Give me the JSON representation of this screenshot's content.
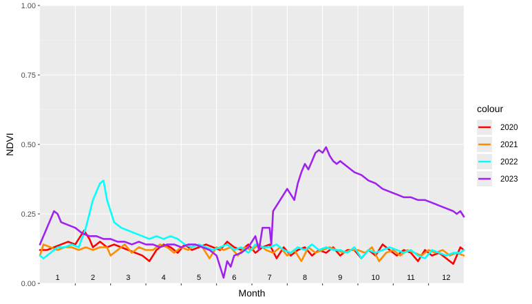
{
  "chart_data": {
    "type": "line",
    "title": "",
    "xlabel": "Month",
    "ylabel": "NDVI",
    "ylim": [
      0,
      1
    ],
    "yticks": [
      0,
      0.25,
      0.5,
      0.75,
      1
    ],
    "ytick_labels": [
      "0.00",
      "0.25",
      "0.50",
      "0.75",
      "1.00"
    ],
    "xlim": [
      0.5,
      12.5
    ],
    "categories": [
      "1",
      "2",
      "3",
      "4",
      "5",
      "6",
      "7",
      "8",
      "9",
      "10",
      "11",
      "12"
    ],
    "grid": true,
    "legend": {
      "title": "colour",
      "position": "right"
    },
    "series": [
      {
        "name": "2020",
        "color": "#ff0000",
        "x": [
          0.5,
          0.7,
          0.9,
          1.1,
          1.3,
          1.5,
          1.75,
          1.9,
          2.0,
          2.2,
          2.4,
          2.6,
          2.8,
          3.0,
          3.2,
          3.4,
          3.6,
          3.8,
          4.0,
          4.2,
          4.4,
          4.6,
          4.8,
          5.0,
          5.2,
          5.4,
          5.6,
          5.8,
          6.0,
          6.2,
          6.4,
          6.6,
          6.8,
          7.0,
          7.2,
          7.4,
          7.6,
          7.8,
          8.0,
          8.2,
          8.4,
          8.6,
          8.8,
          9.0,
          9.2,
          9.4,
          9.6,
          9.8,
          10.0,
          10.2,
          10.4,
          10.6,
          10.8,
          11.0,
          11.2,
          11.4,
          11.6,
          11.8,
          12.0,
          12.2,
          12.4,
          12.5
        ],
        "y": [
          0.12,
          0.12,
          0.13,
          0.14,
          0.15,
          0.14,
          0.19,
          0.16,
          0.13,
          0.15,
          0.13,
          0.14,
          0.13,
          0.12,
          0.11,
          0.1,
          0.08,
          0.12,
          0.14,
          0.13,
          0.11,
          0.14,
          0.12,
          0.13,
          0.14,
          0.13,
          0.12,
          0.15,
          0.13,
          0.12,
          0.14,
          0.11,
          0.13,
          0.14,
          0.09,
          0.13,
          0.1,
          0.12,
          0.13,
          0.1,
          0.12,
          0.11,
          0.13,
          0.1,
          0.12,
          0.12,
          0.09,
          0.12,
          0.1,
          0.14,
          0.12,
          0.1,
          0.12,
          0.11,
          0.08,
          0.12,
          0.1,
          0.11,
          0.09,
          0.07,
          0.13,
          0.12
        ]
      },
      {
        "name": "2021",
        "color": "#ff8c00",
        "x": [
          0.5,
          0.6,
          0.8,
          1.0,
          1.2,
          1.4,
          1.6,
          1.8,
          2.0,
          2.2,
          2.4,
          2.5,
          2.7,
          2.9,
          3.1,
          3.3,
          3.5,
          3.7,
          3.9,
          4.1,
          4.3,
          4.5,
          4.7,
          4.9,
          5.1,
          5.3,
          5.5,
          5.7,
          5.9,
          6.1,
          6.3,
          6.5,
          6.7,
          6.9,
          7.1,
          7.3,
          7.5,
          7.7,
          7.9,
          8.1,
          8.3,
          8.5,
          8.7,
          8.9,
          9.1,
          9.3,
          9.5,
          9.7,
          9.9,
          10.1,
          10.3,
          10.5,
          10.7,
          10.9,
          11.1,
          11.3,
          11.5,
          11.7,
          11.9,
          12.1,
          12.3,
          12.5
        ],
        "y": [
          0.1,
          0.14,
          0.13,
          0.12,
          0.13,
          0.13,
          0.12,
          0.13,
          0.12,
          0.13,
          0.13,
          0.1,
          0.12,
          0.14,
          0.11,
          0.13,
          0.12,
          0.12,
          0.14,
          0.13,
          0.11,
          0.13,
          0.12,
          0.14,
          0.13,
          0.09,
          0.13,
          0.12,
          0.13,
          0.1,
          0.13,
          0.12,
          0.14,
          0.12,
          0.11,
          0.13,
          0.1,
          0.12,
          0.08,
          0.13,
          0.11,
          0.12,
          0.13,
          0.12,
          0.11,
          0.12,
          0.12,
          0.11,
          0.13,
          0.08,
          0.11,
          0.12,
          0.1,
          0.12,
          0.11,
          0.1,
          0.12,
          0.11,
          0.12,
          0.1,
          0.11,
          0.1
        ]
      },
      {
        "name": "2022",
        "color": "#00ffff",
        "x": [
          0.5,
          0.6,
          0.7,
          0.8,
          0.9,
          1.0,
          1.2,
          1.4,
          1.6,
          1.8,
          2.0,
          2.2,
          2.3,
          2.4,
          2.5,
          2.6,
          2.8,
          3.0,
          3.2,
          3.4,
          3.6,
          3.8,
          4.0,
          4.2,
          4.4,
          4.6,
          4.8,
          5.0,
          5.2,
          5.4,
          5.6,
          5.8,
          6.0,
          6.2,
          6.4,
          6.6,
          6.8,
          7.0,
          7.2,
          7.4,
          7.6,
          7.8,
          8.0,
          8.2,
          8.4,
          8.6,
          8.8,
          9.0,
          9.2,
          9.4,
          9.6,
          9.8,
          10.0,
          10.2,
          10.4,
          10.6,
          10.8,
          11.0,
          11.2,
          11.4,
          11.6,
          11.8,
          12.0,
          12.2,
          12.4,
          12.5
        ],
        "y": [
          0.1,
          0.09,
          0.1,
          0.11,
          0.12,
          0.13,
          0.13,
          0.14,
          0.13,
          0.2,
          0.3,
          0.36,
          0.37,
          0.3,
          0.26,
          0.22,
          0.2,
          0.19,
          0.18,
          0.17,
          0.16,
          0.17,
          0.16,
          0.17,
          0.16,
          0.14,
          0.13,
          0.14,
          0.13,
          0.12,
          0.13,
          0.14,
          0.12,
          0.13,
          0.11,
          0.14,
          0.13,
          0.13,
          0.14,
          0.12,
          0.11,
          0.13,
          0.12,
          0.14,
          0.12,
          0.13,
          0.12,
          0.12,
          0.11,
          0.13,
          0.09,
          0.12,
          0.11,
          0.12,
          0.13,
          0.12,
          0.11,
          0.12,
          0.1,
          0.09,
          0.12,
          0.11,
          0.1,
          0.11,
          0.11,
          0.12
        ]
      },
      {
        "name": "2023",
        "color": "#a020f0",
        "x": [
          0.5,
          0.9,
          1.0,
          1.1,
          1.3,
          1.5,
          1.7,
          1.9,
          2.1,
          2.3,
          2.5,
          2.7,
          2.9,
          3.1,
          3.3,
          3.5,
          3.7,
          3.9,
          4.1,
          4.3,
          4.5,
          4.7,
          4.9,
          5.1,
          5.3,
          5.5,
          5.7,
          5.8,
          5.9,
          6.0,
          6.2,
          6.4,
          6.6,
          6.7,
          6.8,
          6.9,
          7.0,
          7.05,
          7.1,
          7.3,
          7.5,
          7.6,
          7.7,
          7.8,
          7.9,
          8.0,
          8.1,
          8.2,
          8.3,
          8.4,
          8.5,
          8.6,
          8.7,
          8.8,
          8.9,
          9.0,
          9.1,
          9.2,
          9.4,
          9.6,
          9.8,
          10.0,
          10.2,
          10.4,
          10.6,
          10.8,
          11.0,
          11.2,
          11.4,
          11.6,
          11.8,
          12.0,
          12.2,
          12.3,
          12.4,
          12.5
        ],
        "y": [
          0.14,
          0.26,
          0.25,
          0.22,
          0.21,
          0.2,
          0.18,
          0.17,
          0.17,
          0.16,
          0.16,
          0.15,
          0.15,
          0.14,
          0.15,
          0.14,
          0.14,
          0.13,
          0.14,
          0.14,
          0.13,
          0.14,
          0.14,
          0.13,
          0.12,
          0.1,
          0.02,
          0.08,
          0.06,
          0.1,
          0.11,
          0.13,
          0.17,
          0.12,
          0.2,
          0.2,
          0.2,
          0.14,
          0.26,
          0.3,
          0.34,
          0.32,
          0.3,
          0.36,
          0.4,
          0.43,
          0.41,
          0.44,
          0.47,
          0.48,
          0.47,
          0.49,
          0.46,
          0.44,
          0.43,
          0.44,
          0.43,
          0.42,
          0.4,
          0.39,
          0.37,
          0.36,
          0.34,
          0.33,
          0.32,
          0.31,
          0.31,
          0.3,
          0.3,
          0.29,
          0.28,
          0.27,
          0.26,
          0.25,
          0.26,
          0.24
        ]
      }
    ]
  }
}
